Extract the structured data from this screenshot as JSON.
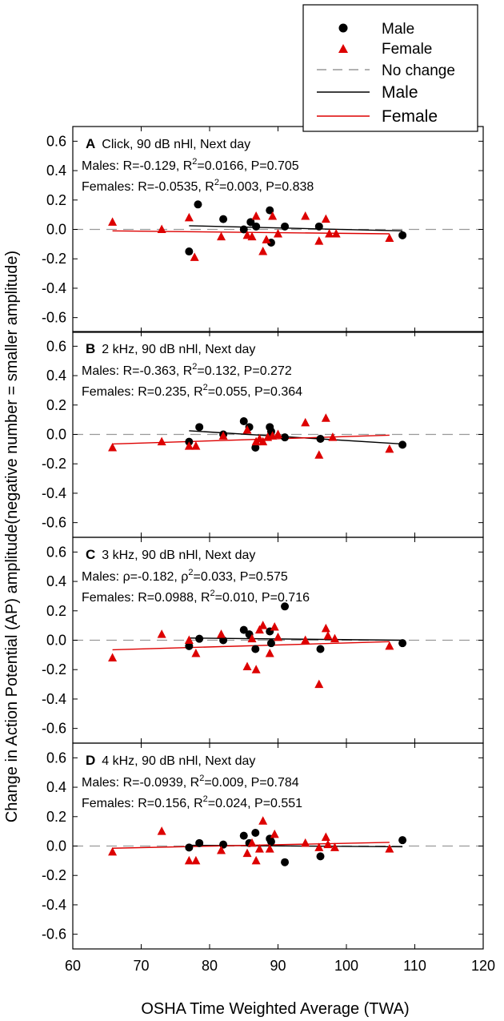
{
  "colors": {
    "male": "#000000",
    "female": "#dd0000",
    "nochange": "#999999"
  },
  "legend": {
    "male_marker": "Male",
    "female_marker": "Female",
    "no_change": "No change",
    "male_line": "Male",
    "female_line": "Female"
  },
  "axes": {
    "xlabel": "OSHA Time Weighted Average (TWA)",
    "ylabel": "Change in Action Potential (AP) amplitude(negative number = smaller amplitude)",
    "xlim": [
      60,
      120
    ],
    "ylim": [
      -0.7,
      0.7
    ],
    "xticks": [
      "60",
      "70",
      "80",
      "90",
      "100",
      "110",
      "120"
    ],
    "yticks": [
      "0.6",
      "0.4",
      "0.2",
      "0.0",
      "-0.2",
      "-0.4",
      "-0.6"
    ]
  },
  "chart_data": [
    {
      "type": "scatter",
      "letter": "A",
      "title": "Click, 90 dB nHl, Next day",
      "males_stats": {
        "prefix": "Males: R=-0.129, R",
        "sup": "2",
        "suffix": "=0.0166, P=0.705"
      },
      "females_stats": {
        "prefix": "Females: R=-0.0535, R",
        "sup": "2",
        "suffix": "=0.003, P=0.838"
      },
      "xlim": [
        60,
        120
      ],
      "ylim": [
        -0.7,
        0.7
      ],
      "series": [
        {
          "name": "Male",
          "marker": "circle",
          "x": [
            77,
            78.3,
            82,
            85,
            86,
            86.8,
            88.8,
            89,
            91,
            96,
            108.2
          ],
          "y": [
            -0.15,
            0.17,
            0.07,
            0.0,
            0.05,
            0.02,
            0.13,
            -0.09,
            0.02,
            0.02,
            -0.04
          ]
        },
        {
          "name": "Female",
          "marker": "triangle",
          "x": [
            65.8,
            73,
            77,
            77.8,
            81.7,
            85.5,
            86.2,
            86.8,
            87.8,
            88.3,
            89.2,
            90,
            94,
            96,
            97,
            97.5,
            98.5,
            106.3
          ],
          "y": [
            0.05,
            0.0,
            0.08,
            -0.19,
            -0.05,
            -0.04,
            -0.05,
            0.09,
            -0.15,
            -0.07,
            0.09,
            -0.03,
            0.09,
            -0.08,
            0.07,
            -0.03,
            -0.03,
            -0.06
          ]
        }
      ],
      "fits": [
        {
          "name": "Male",
          "x": [
            77,
            108.2
          ],
          "y": [
            0.025,
            -0.01
          ]
        },
        {
          "name": "Female",
          "x": [
            65.8,
            106.3
          ],
          "y": [
            -0.01,
            -0.03
          ]
        }
      ]
    },
    {
      "type": "scatter",
      "letter": "B",
      "title": "2 kHz, 90 dB nHl, Next day",
      "males_stats": {
        "prefix": "Males: R=-0.363, R",
        "sup": "2",
        "suffix": "=0.132, P=0.272"
      },
      "females_stats": {
        "prefix": "Females: R=0.235, R",
        "sup": "2",
        "suffix": "=0.055, P=0.364"
      },
      "xlim": [
        60,
        120
      ],
      "ylim": [
        -0.7,
        0.7
      ],
      "series": [
        {
          "name": "Male",
          "marker": "circle",
          "x": [
            77,
            78.5,
            82,
            85,
            85.8,
            86.7,
            88.8,
            89,
            91,
            96.2,
            108.2
          ],
          "y": [
            -0.05,
            0.05,
            0.0,
            0.09,
            0.05,
            -0.09,
            0.05,
            0.02,
            -0.02,
            -0.03,
            -0.07
          ]
        },
        {
          "name": "Female",
          "marker": "triangle",
          "x": [
            65.8,
            73,
            77,
            78,
            82,
            85.5,
            86.8,
            87.3,
            87.8,
            88.5,
            89.2,
            90,
            94,
            96,
            97,
            98,
            106.3
          ],
          "y": [
            -0.09,
            -0.05,
            -0.08,
            -0.08,
            -0.01,
            0.03,
            -0.05,
            -0.03,
            -0.05,
            -0.02,
            -0.01,
            0.0,
            0.08,
            -0.14,
            0.11,
            -0.02,
            -0.1
          ]
        }
      ],
      "fits": [
        {
          "name": "Male",
          "x": [
            77,
            108.2
          ],
          "y": [
            0.025,
            -0.065
          ]
        },
        {
          "name": "Female",
          "x": [
            65.8,
            106.3
          ],
          "y": [
            -0.065,
            -0.005
          ]
        }
      ]
    },
    {
      "type": "scatter",
      "letter": "C",
      "title": "3 kHz, 90 dB nHl, Next day",
      "males_stats": {
        "prefix": "Males: ρ=-0.182, ρ",
        "sup": "2",
        "suffix": "=0.033, P=0.575"
      },
      "females_stats": {
        "prefix": "Females: R=0.0988, R",
        "sup": "2",
        "suffix": "=0.010, P=0.716"
      },
      "xlim": [
        60,
        120
      ],
      "ylim": [
        -0.7,
        0.7
      ],
      "series": [
        {
          "name": "Male",
          "marker": "circle",
          "x": [
            77,
            78.5,
            82,
            85,
            85.8,
            86.7,
            88.8,
            89,
            91,
            96.2,
            108.2
          ],
          "y": [
            -0.04,
            0.01,
            0.0,
            0.07,
            0.04,
            -0.06,
            0.06,
            -0.02,
            0.23,
            -0.06,
            -0.02
          ]
        },
        {
          "name": "Female",
          "marker": "triangle",
          "x": [
            65.8,
            73,
            77,
            78,
            81.7,
            85.5,
            86.2,
            86.8,
            87.3,
            87.8,
            88.8,
            89.5,
            90,
            94,
            96,
            97,
            97.3,
            98.3,
            106.3
          ],
          "y": [
            -0.12,
            0.04,
            0.0,
            -0.09,
            0.04,
            -0.18,
            0.01,
            -0.2,
            0.07,
            0.1,
            -0.09,
            0.09,
            0.02,
            0.0,
            -0.3,
            0.08,
            0.03,
            0.01,
            -0.04
          ]
        }
      ],
      "fits": [
        {
          "name": "Male",
          "x": [
            77,
            108.2
          ],
          "y": [
            0.015,
            0.0
          ]
        },
        {
          "name": "Female",
          "x": [
            65.8,
            106.3
          ],
          "y": [
            -0.065,
            -0.01
          ]
        }
      ]
    },
    {
      "type": "scatter",
      "letter": "D",
      "title": "4 kHz, 90 dB nHl, Next day",
      "males_stats": {
        "prefix": "Males: R=-0.0939, R",
        "sup": "2",
        "suffix": "=0.009, P=0.784"
      },
      "females_stats": {
        "prefix": "Females: R=0.156, R",
        "sup": "2",
        "suffix": "=0.024, P=0.551"
      },
      "xlim": [
        60,
        120
      ],
      "ylim": [
        -0.7,
        0.7
      ],
      "series": [
        {
          "name": "Male",
          "marker": "circle",
          "x": [
            77,
            78.5,
            82,
            85,
            85.8,
            86.7,
            88.8,
            89,
            91,
            96.2,
            108.2
          ],
          "y": [
            -0.01,
            0.02,
            0.01,
            0.07,
            0.02,
            0.09,
            0.05,
            0.03,
            -0.11,
            -0.07,
            0.04
          ]
        },
        {
          "name": "Female",
          "marker": "triangle",
          "x": [
            65.8,
            73,
            77,
            78,
            81.7,
            85.5,
            86.2,
            86.8,
            87.3,
            87.8,
            88.8,
            89.5,
            94,
            96,
            97,
            97.3,
            98.3,
            106.3
          ],
          "y": [
            -0.04,
            0.1,
            -0.1,
            -0.1,
            -0.03,
            -0.05,
            0.02,
            -0.1,
            -0.02,
            0.17,
            -0.02,
            0.08,
            0.02,
            -0.01,
            0.06,
            0.01,
            -0.01,
            -0.02
          ]
        }
      ],
      "fits": [
        {
          "name": "Male",
          "x": [
            77,
            108.2
          ],
          "y": [
            0.005,
            -0.005
          ]
        },
        {
          "name": "Female",
          "x": [
            65.8,
            106.3
          ],
          "y": [
            -0.015,
            0.025
          ]
        }
      ]
    }
  ]
}
